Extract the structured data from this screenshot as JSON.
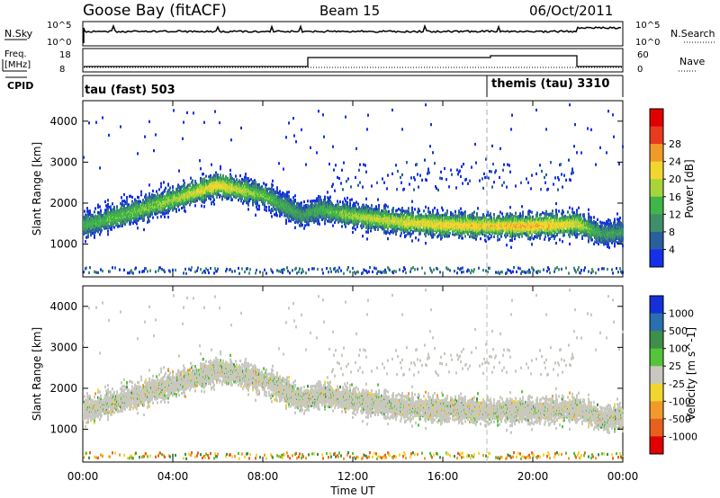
{
  "header": {
    "station": "Goose Bay (fitACF)",
    "beam": "Beam 15",
    "date": "06/Oct/2011"
  },
  "left_labels": {
    "nsky": "N.Sky",
    "freq_line1": "Freq.",
    "freq_line2": "[MHz]",
    "cpid": "CPID"
  },
  "right_labels": {
    "nsearch": "N.Search",
    "nave": "Nave"
  },
  "noise_panel": {
    "ticks_left": [
      "10^5",
      "10^0"
    ],
    "ticks_right": [
      "10^5",
      "10^0"
    ]
  },
  "freq_panel": {
    "ticks_left": [
      "18",
      "8"
    ],
    "ticks_right": [
      "60",
      "0"
    ]
  },
  "cpid_panel": {
    "label_1": "tau (fast) 503",
    "label_2": "themis (tau) 3310"
  },
  "colors": {
    "power": [
      "#1530e8",
      "#2a5f9e",
      "#3f8f6a",
      "#3fb54a",
      "#a7d43b",
      "#f1d630",
      "#f19a2a",
      "#e83a1e",
      "#e00000"
    ],
    "velocity": [
      "#1530d8",
      "#2a6fae",
      "#3f8f4a",
      "#54c43a",
      "#c8c8c0",
      "#f1d630",
      "#f19a2a",
      "#e8601e",
      "#e00000"
    ]
  },
  "chart_data": [
    {
      "type": "heatmap",
      "title": "",
      "xlabel": "",
      "ylabel": "Slant Range [km]",
      "xlim": [
        "00:00",
        "24:00"
      ],
      "ylim": [
        200,
        4500
      ],
      "y_ticks": [
        "1000",
        "2000",
        "3000",
        "4000"
      ],
      "colorbar_label": "Power [dB]",
      "colorbar_ticks": [
        "4",
        "8",
        "12",
        "16",
        "20",
        "24",
        "28"
      ],
      "colorbar_range": [
        0,
        32
      ],
      "echo_band": {
        "x": [
          "00:00",
          "02:00",
          "04:00",
          "06:00",
          "08:00",
          "09:45",
          "10:30",
          "12:00",
          "14:00",
          "16:00",
          "18:00",
          "20:00",
          "22:00",
          "23:00",
          "24:00"
        ],
        "center_km": [
          1450,
          1750,
          2100,
          2450,
          2200,
          1700,
          1850,
          1700,
          1550,
          1480,
          1450,
          1450,
          1500,
          1250,
          1300
        ],
        "peak_power_db": [
          12,
          14,
          16,
          20,
          14,
          10,
          12,
          16,
          18,
          20,
          20,
          22,
          18,
          10,
          10
        ]
      }
    },
    {
      "type": "heatmap",
      "title": "",
      "xlabel": "Time UT",
      "ylabel": "Slant Range [km]",
      "xlim": [
        "00:00",
        "24:00"
      ],
      "ylim": [
        200,
        4500
      ],
      "x_ticks": [
        "00:00",
        "04:00",
        "08:00",
        "12:00",
        "16:00",
        "20:00",
        "00:00"
      ],
      "y_ticks": [
        "1000",
        "2000",
        "3000",
        "4000"
      ],
      "colorbar_label": "Velocity [m s^-1]",
      "colorbar_ticks": [
        "1000",
        "500",
        "100",
        "25",
        "-25",
        "-100",
        "-500",
        "-1000"
      ],
      "dominant_velocity_bin": "-25 to 25"
    }
  ]
}
